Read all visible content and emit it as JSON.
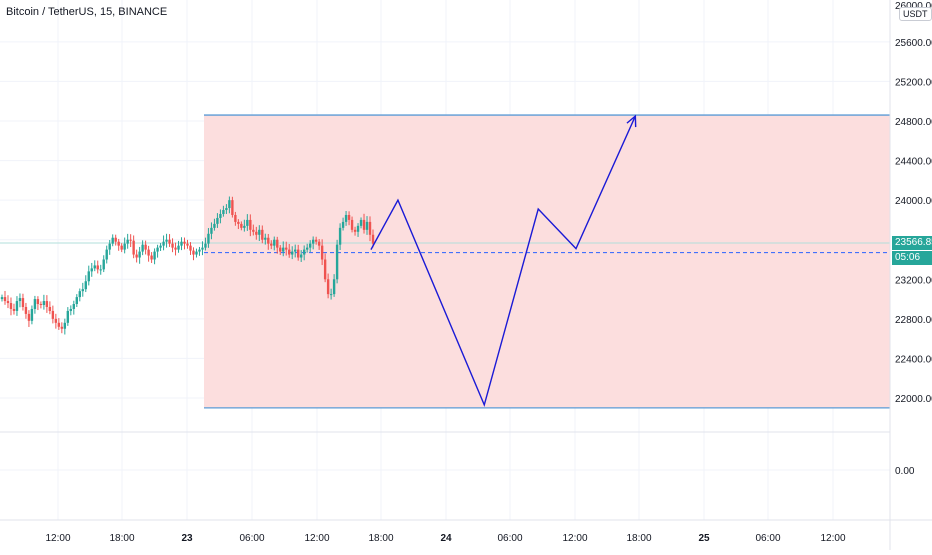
{
  "header": {
    "title": "Bitcoin / TetherUS, 15, BINANCE",
    "currency": "USDT"
  },
  "price_scale": {
    "labels": [
      "25600.00",
      "25200.00",
      "24800.00",
      "24400.00",
      "24000.00",
      "23600.00",
      "23200.00",
      "22800.00",
      "22400.00",
      "22000.00",
      "0.00"
    ],
    "top_label": "26000.00",
    "last_price": "23566.85",
    "countdown": "05:06",
    "last_price_color": "#26a69a"
  },
  "time_axis": {
    "labels": [
      "12:00",
      "18:00",
      "23",
      "06:00",
      "12:00",
      "18:00",
      "24",
      "06:00",
      "12:00",
      "18:00",
      "25",
      "06:00",
      "12:00"
    ],
    "bold": [
      false,
      false,
      true,
      false,
      false,
      false,
      true,
      false,
      false,
      false,
      true,
      false,
      false
    ]
  },
  "colors": {
    "up": "#26a69a",
    "down": "#ef5350",
    "zone_fill": "#fcdede",
    "zone_border": "#5b9bd5",
    "projection": "#1a1ad6",
    "dashed_level": "#2962ff"
  },
  "chart_data": {
    "type": "candlestick",
    "symbol": "Bitcoin / TetherUS",
    "interval": "15",
    "exchange": "BINANCE",
    "ylim": [
      21800,
      26000
    ],
    "x_labels": [
      "12:00",
      "18:00",
      "23",
      "06:00",
      "12:00",
      "18:00",
      "24",
      "06:00",
      "12:00",
      "18:00",
      "25",
      "06:00",
      "12:00"
    ],
    "candles_close": [
      23020,
      22980,
      22960,
      22900,
      22880,
      22980,
      23010,
      22920,
      22850,
      22780,
      22900,
      23000,
      22950,
      22940,
      22980,
      22920,
      22880,
      22800,
      22760,
      22720,
      22700,
      22760,
      22880,
      22900,
      22950,
      23020,
      23080,
      23100,
      23180,
      23280,
      23310,
      23340,
      23300,
      23300,
      23400,
      23500,
      23560,
      23620,
      23580,
      23540,
      23500,
      23560,
      23600,
      23590,
      23450,
      23420,
      23480,
      23550,
      23500,
      23440,
      23400,
      23480,
      23520,
      23540,
      23580,
      23600,
      23560,
      23520,
      23500,
      23540,
      23580,
      23560,
      23540,
      23490,
      23450,
      23480,
      23500,
      23520,
      23560,
      23660,
      23720,
      23760,
      23820,
      23860,
      23900,
      23920,
      24000,
      23850,
      23780,
      23760,
      23720,
      23740,
      23800,
      23700,
      23680,
      23650,
      23700,
      23600,
      23620,
      23560,
      23540,
      23600,
      23520,
      23480,
      23520,
      23500,
      23450,
      23480,
      23500,
      23420,
      23450,
      23500,
      23520,
      23560,
      23600,
      23580,
      23540,
      23400,
      23200,
      23050,
      23050,
      23200,
      23550,
      23720,
      23780,
      23850,
      23800,
      23700,
      23680,
      23740,
      23800,
      23700,
      23780,
      23650,
      23560
    ],
    "zone": {
      "top": 24860,
      "bottom": 21900
    },
    "dashed_level": 23470,
    "last_price": 23566.85,
    "projection_path": [
      {
        "x": "17:00 Jan 23",
        "y": 23500
      },
      {
        "x": "19:30 Jan 23",
        "y": 24000
      },
      {
        "x": "03:30 Jan 24",
        "y": 21930
      },
      {
        "x": "08:30 Jan 24",
        "y": 23910
      },
      {
        "x": "12:00 Jan 24",
        "y": 23510
      },
      {
        "x": "17:30 Jan 24",
        "y": 24850
      }
    ]
  }
}
